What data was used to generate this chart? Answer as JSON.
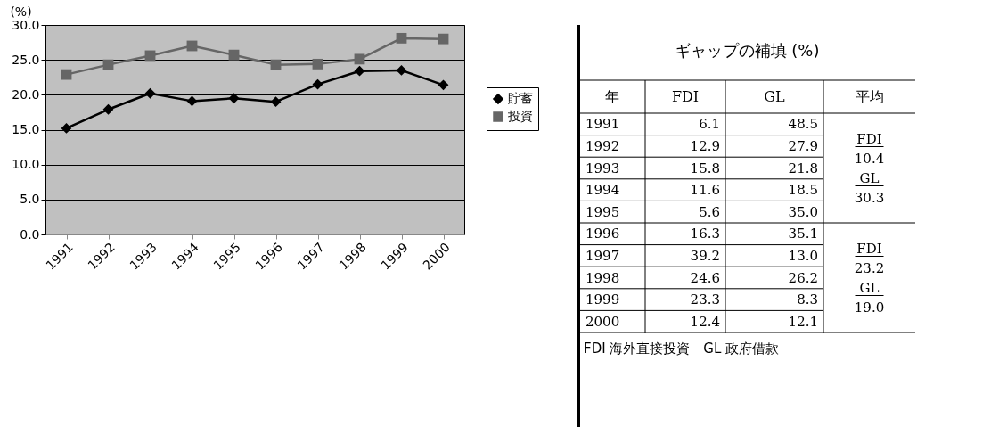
{
  "chart_data": [
    {
      "type": "line",
      "ylabel": "(%)",
      "categories": [
        "1991",
        "1992",
        "1993",
        "1994",
        "1995",
        "1996",
        "1997",
        "1998",
        "1999",
        "2000"
      ],
      "series": [
        {
          "name": "貯蓄",
          "color": "#000000",
          "marker": "diamond",
          "values": [
            15.2,
            17.9,
            20.2,
            19.1,
            19.5,
            19.0,
            21.5,
            23.4,
            23.5,
            21.4
          ]
        },
        {
          "name": "投資",
          "color": "#666666",
          "marker": "square",
          "values": [
            22.9,
            24.3,
            25.6,
            27.0,
            25.7,
            24.3,
            24.4,
            25.1,
            28.1,
            28.0
          ]
        }
      ],
      "ylim": [
        0,
        30
      ],
      "yticks": [
        {
          "value": 0,
          "label": "0.0"
        },
        {
          "value": 5,
          "label": "5.0"
        },
        {
          "value": 10,
          "label": "10.0"
        },
        {
          "value": 15,
          "label": "15.0"
        },
        {
          "value": 20,
          "label": "20.0"
        },
        {
          "value": 25,
          "label": "25.0"
        },
        {
          "value": 30,
          "label": "30.0"
        }
      ],
      "grid": "y",
      "legend": "right",
      "line_style": "solid"
    },
    {
      "type": "heatmap",
      "title": "ギャップの補填 (%)",
      "data_labels": true,
      "categories": [
        "FDI",
        "GL"
      ],
      "y_categories": [
        "1991",
        "1992",
        "1993",
        "1994",
        "1995",
        "1996",
        "1997",
        "1998",
        "1999",
        "2000"
      ],
      "cells": [
        [
          6.1,
          48.5
        ],
        [
          12.9,
          27.9
        ],
        [
          15.8,
          21.8
        ],
        [
          11.6,
          18.5
        ],
        [
          5.6,
          35.0
        ],
        [
          16.3,
          35.1
        ],
        [
          39.2,
          13.0
        ],
        [
          24.6,
          26.2
        ],
        [
          23.3,
          8.3
        ],
        [
          12.4,
          12.1
        ]
      ],
      "cell_labels": [
        [
          "6.1",
          "48.5"
        ],
        [
          "12.9",
          "27.9"
        ],
        [
          "15.8",
          "21.8"
        ],
        [
          "11.6",
          "18.5"
        ],
        [
          "5.6",
          "35.0"
        ],
        [
          "16.3",
          "35.1"
        ],
        [
          "39.2",
          "13.0"
        ],
        [
          "24.6",
          "26.2"
        ],
        [
          "23.3",
          "8.3"
        ],
        [
          "12.4",
          "12.1"
        ]
      ],
      "annotations": [
        "年",
        "平均",
        "FDI",
        "10.4",
        "GL",
        "30.3",
        "FDI",
        "23.2",
        "GL",
        "19.0",
        "FDI 海外直接投資　GL 政府借款"
      ]
    }
  ]
}
